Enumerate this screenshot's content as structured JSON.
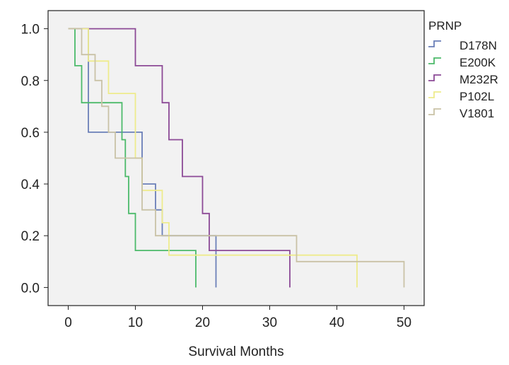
{
  "chart_data": {
    "type": "line",
    "subtype": "kaplan-meier step",
    "title": "",
    "xlabel": "Survival Months",
    "ylabel": "",
    "xlim": [
      -3,
      53
    ],
    "ylim": [
      -0.07,
      1.07
    ],
    "xticks": [
      "0",
      "10",
      "20",
      "30",
      "40",
      "50"
    ],
    "yticks": [
      "0.0",
      "0.2",
      "0.4",
      "0.6",
      "0.8",
      "1.0"
    ],
    "background": "#f2f2f2",
    "legend_title": "PRNP",
    "legend_position": "right",
    "series": [
      {
        "name": "D178N",
        "color": "#6a7fb8",
        "x": [
          0,
          3,
          3,
          11,
          11,
          13,
          13,
          14,
          14,
          22,
          22
        ],
        "y": [
          1.0,
          1.0,
          0.6,
          0.6,
          0.4,
          0.4,
          0.3,
          0.3,
          0.2,
          0.2,
          0.0
        ]
      },
      {
        "name": "E200K",
        "color": "#4cba6a",
        "x": [
          0,
          1,
          1,
          2,
          2,
          8,
          8,
          8.5,
          8.5,
          9,
          9,
          10,
          10,
          19,
          19
        ],
        "y": [
          1.0,
          1.0,
          0.857,
          0.857,
          0.714,
          0.714,
          0.571,
          0.571,
          0.429,
          0.429,
          0.286,
          0.286,
          0.143,
          0.143,
          0.0
        ]
      },
      {
        "name": "M232R",
        "color": "#8c4a96",
        "x": [
          0,
          10,
          10,
          14,
          14,
          15,
          15,
          17,
          17,
          20,
          20,
          21,
          21,
          27,
          27,
          33,
          33
        ],
        "y": [
          1.0,
          1.0,
          0.857,
          0.857,
          0.714,
          0.714,
          0.571,
          0.571,
          0.429,
          0.429,
          0.286,
          0.286,
          0.143,
          0.143,
          0.143,
          0.143,
          0.0
        ]
      },
      {
        "name": "P102L",
        "color": "#eeeb8c",
        "x": [
          0,
          3,
          3,
          6,
          6,
          10,
          10,
          11,
          11,
          14,
          14,
          15,
          15,
          43,
          43
        ],
        "y": [
          1.0,
          1.0,
          0.875,
          0.875,
          0.75,
          0.75,
          0.5,
          0.5,
          0.375,
          0.375,
          0.25,
          0.25,
          0.125,
          0.125,
          0.0
        ]
      },
      {
        "name": "V1801",
        "color": "#c9c2a6",
        "x": [
          0,
          2,
          2,
          4,
          4,
          5,
          5,
          6,
          6,
          7,
          7,
          11,
          11,
          13,
          13,
          15,
          15,
          34,
          34,
          50,
          50
        ],
        "y": [
          1.0,
          1.0,
          0.9,
          0.9,
          0.8,
          0.8,
          0.7,
          0.7,
          0.6,
          0.6,
          0.5,
          0.5,
          0.3,
          0.3,
          0.2,
          0.2,
          0.2,
          0.2,
          0.1,
          0.1,
          0.0
        ]
      }
    ]
  }
}
